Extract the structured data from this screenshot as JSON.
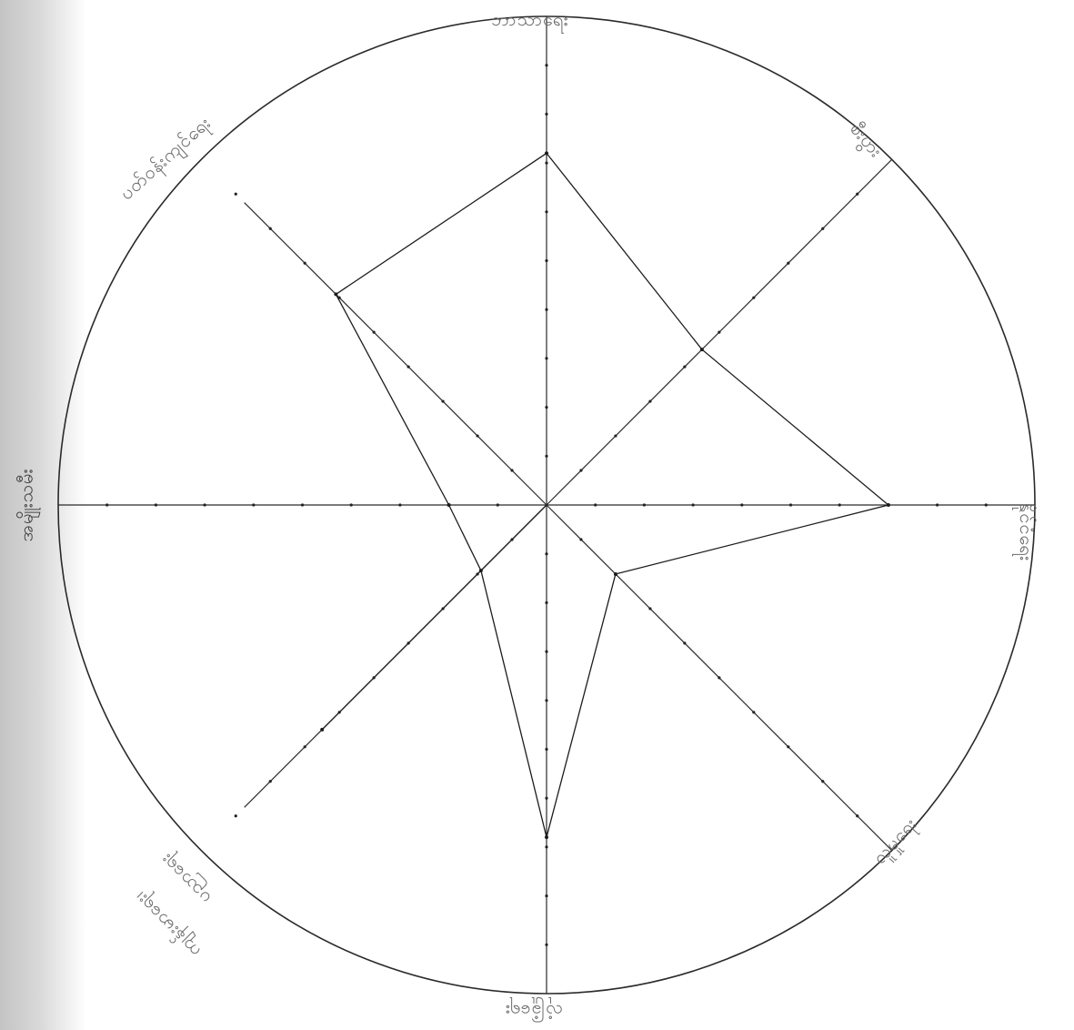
{
  "chart_data": {
    "type": "radar",
    "axes": [
      "ဘာသာရေး",
      "စီးပွား",
      "နိုင်ငံရေး",
      "လူမှုရေး",
      "လုံခြုံရေး",
      "ကျန်းမာရေး၊ ပညာရေး",
      "အမျိုးသမီး",
      "ပတ်ဝန်းကျင်ရေး"
    ],
    "scale_max": 10,
    "series": [
      {
        "values": [
          7.2,
          4.5,
          7.0,
          2.0,
          6.8,
          1.9,
          2.0,
          6.1
        ]
      },
      {
        "values": [
          0,
          0,
          0,
          0,
          0,
          6.5,
          0,
          0
        ]
      }
    ],
    "grid": false,
    "colors": {
      "series_line": "#1c1c1c",
      "axis_line": "#2a2a2a",
      "tick": "#222222",
      "label": "#6a6a6a",
      "scan_edge": "#c8c8c8"
    }
  },
  "labels": {
    "top": "ဘာသာရေး",
    "upper_right": "စီးပွား",
    "right": "နိုင်ငံရေး",
    "lower_right": "လူမှုရေး",
    "bottom": "လုံခြုံရေး",
    "lower_left_1": "ကျန်းမာရေး၊",
    "lower_left_2": "ပညာရေး",
    "left": "အမျိုးသမီး",
    "upper_left": "ပတ်ဝန်းကျင်ရေး"
  }
}
